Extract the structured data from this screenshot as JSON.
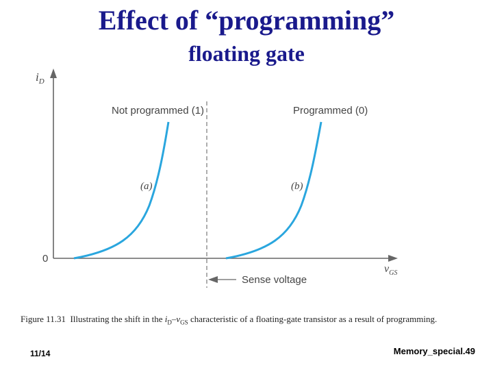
{
  "slide": {
    "title": "Effect of “programming”",
    "subtitle": "floating gate"
  },
  "diagram": {
    "y_axis_label": "i",
    "y_axis_subscript": "D",
    "origin_label": "0",
    "x_axis_label": "v",
    "x_axis_subscript": "GS",
    "curve_a_label": "Not programmed (1)",
    "curve_b_label": "Programmed (0)",
    "curve_a_tag": "(a)",
    "curve_b_tag": "(b)",
    "sense_label": "Sense voltage",
    "curve_color": "#2aa6de"
  },
  "caption": {
    "figure_id": "Figure 11.31",
    "text_1": "Illustrating the shift in the ",
    "var_i": "i",
    "var_i_sub": "D",
    "dash": "–",
    "var_v": "v",
    "var_v_sub": "GS",
    "text_2": " characteristic of a floating-gate transistor as a result of programming."
  },
  "footer": {
    "date": "11/14",
    "slide_ref": "Memory_special.49"
  }
}
